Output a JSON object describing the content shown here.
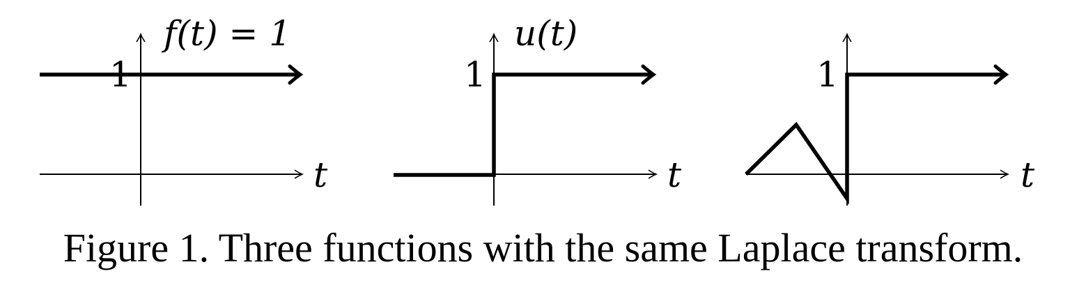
{
  "panels": [
    {
      "function_label": "f(t) = 1",
      "axis_label": "t",
      "tick_label": "1"
    },
    {
      "function_label": "u(t)",
      "axis_label": "t",
      "tick_label": "1"
    },
    {
      "function_label": "",
      "axis_label": "t",
      "tick_label": "1"
    }
  ],
  "caption": "Figure 1. Three functions with the same Laplace transform."
}
